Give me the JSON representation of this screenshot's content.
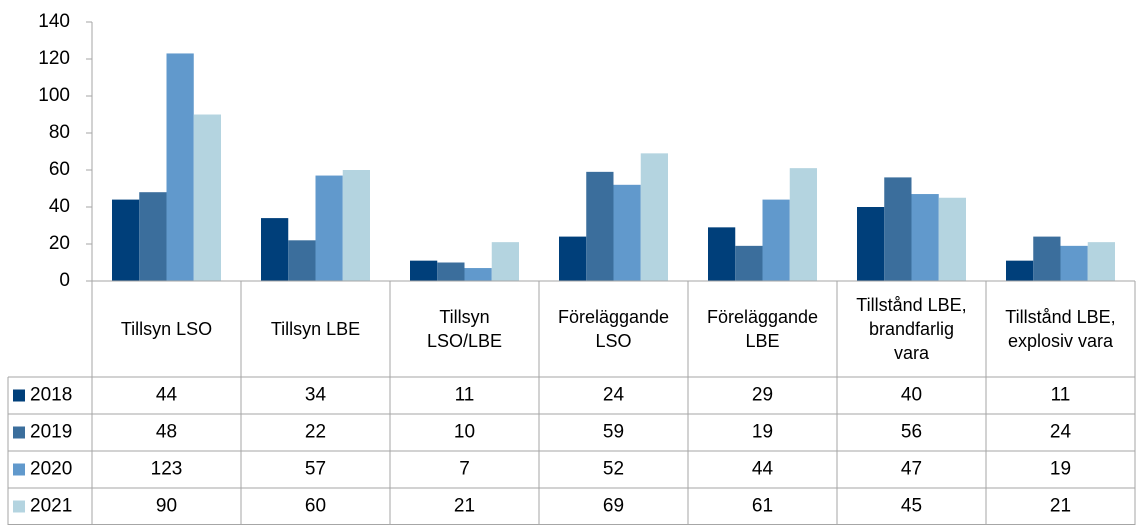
{
  "chart_data": {
    "type": "bar",
    "categories": [
      "Tillsyn LSO",
      "Tillsyn LBE",
      "Tillsyn\nLSO/LBE",
      "Föreläggande\nLSO",
      "Föreläggande\nLBE",
      "Tillstånd LBE,\nbrandfarlig\nvara",
      "Tillstånd LBE,\nexplosiv vara"
    ],
    "series": [
      {
        "name": "2018",
        "color": "#003f7a",
        "values": [
          44,
          34,
          11,
          24,
          29,
          40,
          11
        ]
      },
      {
        "name": "2019",
        "color": "#3b6e9c",
        "values": [
          48,
          22,
          10,
          59,
          19,
          56,
          24
        ]
      },
      {
        "name": "2020",
        "color": "#6199cc",
        "values": [
          123,
          57,
          7,
          52,
          44,
          47,
          19
        ]
      },
      {
        "name": "2021",
        "color": "#b4d4e0",
        "values": [
          90,
          60,
          21,
          69,
          61,
          45,
          21
        ]
      }
    ],
    "ylim": [
      0,
      140
    ],
    "yticks": [
      0,
      20,
      40,
      60,
      80,
      100,
      120,
      140
    ],
    "grid": false,
    "data_table": true
  }
}
